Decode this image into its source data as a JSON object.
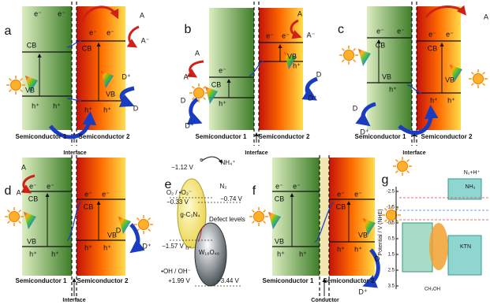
{
  "panels": [
    {
      "texts": [
        "a",
        "A",
        "A⁻",
        "e⁻",
        "e⁻",
        "e⁻",
        "e⁻",
        "CB",
        "CB",
        "VB",
        "VB",
        "h⁺",
        "h⁺",
        "h⁺",
        "h⁺",
        "D⁺",
        "D",
        "Semiconductor 1",
        "Semiconductor 2",
        "Interface"
      ]
    },
    {
      "texts": [
        "b",
        "A",
        "A⁻",
        "e⁻",
        "CB",
        "h⁺",
        "D",
        "D⁺",
        "A",
        "A⁻",
        "e⁻",
        "e⁻",
        "VB",
        "h⁺",
        "D",
        "D⁺",
        "Semiconductor 1",
        "Semiconductor 2",
        "Interface"
      ]
    },
    {
      "texts": [
        "c",
        "e⁻",
        "e⁻",
        "CB",
        "e⁻",
        "e⁻",
        "CB",
        "VB",
        "h⁺",
        "VB",
        "h⁺",
        "h⁺",
        "A",
        "D",
        "D⁺",
        "Semiconductor 1",
        "Semiconductor 2",
        "Interface"
      ]
    },
    {
      "texts": [
        "d",
        "A",
        "A⁻",
        "e⁻",
        "e⁻",
        "CB",
        "e⁻",
        "e⁻",
        "CB",
        "VB",
        "h⁺",
        "h⁺",
        "VB",
        "h⁺",
        "h⁺",
        "D",
        "D⁺",
        "Semiconductor 1",
        "Semiconductor 2",
        "Interface"
      ]
    },
    {
      "texts": [
        "e",
        "−1.12 V",
        "e⁻",
        "NH₄⁺",
        "N₂",
        "O₂ / •O₂⁻",
        "−0.33 V",
        "g-C₃N₄",
        "−0.74 V",
        "Defect levels",
        "−1.57 V",
        "h⁺",
        "W₁₈O₄₉",
        "•OH / OH⁻",
        "+1.99 V",
        "−3.44 V"
      ]
    },
    {
      "texts": [
        "f",
        "e⁻",
        "e⁻",
        "CB",
        "e⁻",
        "e⁻",
        "CB",
        "VB",
        "h⁺",
        "h⁺",
        "VB",
        "h⁺",
        "h⁺",
        "D",
        "D⁺",
        "Semiconductor 1",
        "Semiconductor 2",
        "Conductor"
      ]
    },
    {
      "texts": [
        "g",
        "Potential / V (NHE)",
        "-2.5",
        "-1.5",
        "-0.5",
        "0.5",
        "1.5",
        "2.5",
        "3.5",
        "N₂+H⁺",
        "NH₃",
        "CH₃OH",
        "KTN"
      ]
    }
  ]
}
